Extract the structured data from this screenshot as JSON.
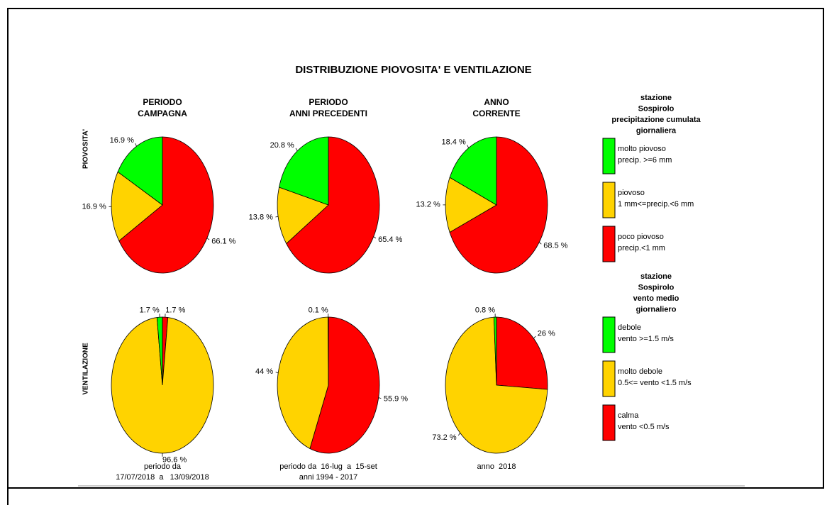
{
  "title": "DISTRIBUZIONE PIOVOSITA' E VENTILAZIONE",
  "column_titles": [
    [
      "PERIODO",
      "CAMPAGNA"
    ],
    [
      "PERIODO",
      "ANNI PRECEDENTI"
    ],
    [
      "ANNO",
      "CORRENTE"
    ]
  ],
  "row_labels": [
    "PIOVOSITA'",
    "VENTILAZIONE"
  ],
  "legends": [
    {
      "title": [
        "stazione",
        "Sospirolo",
        "precipitazione cumulata",
        "giornaliera"
      ],
      "entries": [
        {
          "name": "molto piovoso",
          "description": "precip. >=6 mm",
          "color": "#00ff00"
        },
        {
          "name": "piovoso",
          "description": "1 mm<=precip.<6 mm",
          "color": "#ffd300"
        },
        {
          "name": "poco piovoso",
          "description": "precip.<1 mm",
          "color": "#ff0000"
        }
      ]
    },
    {
      "title": [
        "stazione",
        "Sospirolo",
        "vento medio",
        "giornaliero"
      ],
      "entries": [
        {
          "name": "debole",
          "description": "vento >=1.5 m/s",
          "color": "#00ff00"
        },
        {
          "name": "molto debole",
          "description": "0.5<= vento <1.5 m/s",
          "color": "#ffd300"
        },
        {
          "name": "calma",
          "description": "vento <0.5 m/s",
          "color": "#ff0000"
        }
      ]
    }
  ],
  "footnotes": [
    [
      "periodo da",
      "17/07/2018  a   13/09/2018"
    ],
    [
      "periodo da  16-lug  a  15-set",
      "anni 1994 - 2017"
    ],
    [
      "anno  2018"
    ]
  ],
  "chart_data": [
    {
      "type": "pie",
      "values": [
        66.1,
        16.9,
        16.9
      ],
      "value_labels": [
        "66.1 %",
        "16.9 %",
        "16.9 %"
      ],
      "colors": [
        "#ff0000",
        "#ffd300",
        "#00ff00"
      ]
    },
    {
      "type": "pie",
      "values": [
        65.4,
        13.8,
        20.8
      ],
      "value_labels": [
        "65.4 %",
        "13.8 %",
        "20.8 %"
      ],
      "colors": [
        "#ff0000",
        "#ffd300",
        "#00ff00"
      ]
    },
    {
      "type": "pie",
      "values": [
        68.5,
        13.2,
        18.4
      ],
      "value_labels": [
        "68.5 %",
        "13.2 %",
        "18.4 %"
      ],
      "colors": [
        "#ff0000",
        "#ffd300",
        "#00ff00"
      ]
    },
    {
      "type": "pie",
      "values": [
        1.7,
        96.6,
        1.7
      ],
      "value_labels": [
        "1.7 %",
        "96.6 %",
        "1.7 %"
      ],
      "colors": [
        "#ff0000",
        "#ffd300",
        "#00ff00"
      ]
    },
    {
      "type": "pie",
      "values": [
        55.9,
        44,
        0.1
      ],
      "value_labels": [
        "55.9 %",
        "44 %",
        "0.1 %"
      ],
      "colors": [
        "#ff0000",
        "#ffd300",
        "#00ff00"
      ]
    },
    {
      "type": "pie",
      "values": [
        26,
        73.2,
        0.8
      ],
      "value_labels": [
        "26 %",
        "73.2 %",
        "0.8 %"
      ],
      "colors": [
        "#ff0000",
        "#ffd300",
        "#00ff00"
      ]
    }
  ]
}
